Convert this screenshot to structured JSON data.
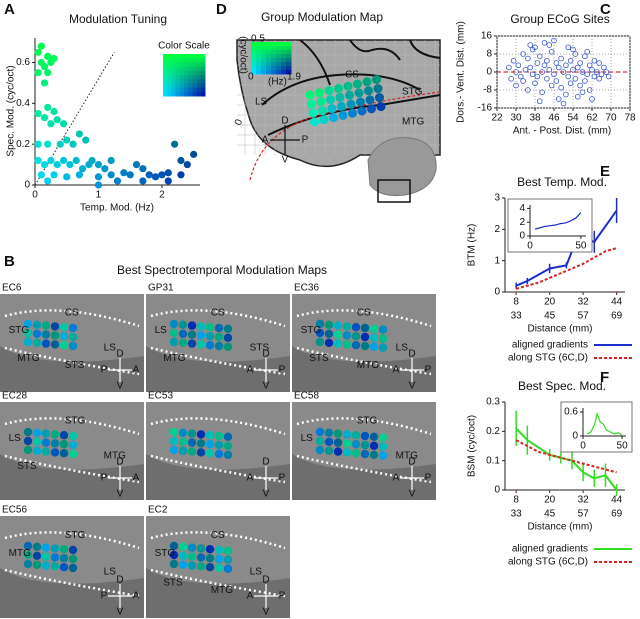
{
  "panels": {
    "letters": [
      "A",
      "B",
      "C",
      "D",
      "E",
      "F"
    ],
    "panel_b": {
      "title": "Best Spectrotemporal Modulation Maps",
      "maps": [
        {
          "id": "EC6",
          "labels": [
            "CS",
            "STG",
            "LS",
            "MTG",
            "STS"
          ],
          "compass": [
            "D",
            "V",
            "P",
            "A"
          ]
        },
        {
          "id": "GP31",
          "labels": [
            "CS",
            "LS",
            "STS",
            "MTG"
          ],
          "compass": [
            "D",
            "V",
            "A",
            "P"
          ]
        },
        {
          "id": "EC36",
          "labels": [
            "CS",
            "STG",
            "LS",
            "STS",
            "MTG"
          ],
          "compass": [
            "D",
            "V",
            "A",
            "P"
          ]
        },
        {
          "id": "EC28",
          "labels": [
            "STG",
            "LS",
            "MTG",
            "STS"
          ],
          "compass": [
            "D",
            "V",
            "P",
            "A"
          ]
        },
        {
          "id": "EC53",
          "labels": [],
          "compass": [
            "D",
            "V",
            "A",
            "P"
          ]
        },
        {
          "id": "EC58",
          "labels": [
            "STG",
            "LS",
            "MTG"
          ],
          "compass": [
            "D",
            "V",
            "A",
            "P"
          ]
        },
        {
          "id": "EC56",
          "labels": [
            "STG",
            "MTG",
            "LS"
          ],
          "compass": [
            "D",
            "V",
            "P",
            "A"
          ]
        },
        {
          "id": "EC2",
          "labels": [
            "CS",
            "STG",
            "LS",
            "STS",
            "MTG"
          ],
          "compass": [
            "D",
            "V",
            "A",
            "P"
          ]
        }
      ]
    },
    "panel_d": {
      "title": "Group Modulation Map",
      "colorbar": {
        "y_unit": "(cyc/oct)",
        "y_max": "0.5",
        "zero": "0",
        "x_unit": "(Hz)",
        "x_max": "1.9"
      },
      "labels": [
        "CS",
        "LS",
        "STG",
        "MTG"
      ],
      "origin_label": "0",
      "compass": [
        "D",
        "V",
        "A",
        "P"
      ]
    }
  },
  "chart_data": [
    {
      "type": "scatter",
      "title": "Modulation Tuning",
      "x_label": "Temp. Mod. (Hz)",
      "y_label": "Spec. Mod. (cyc/oct)",
      "color_scale_label": "Color Scale",
      "color_scale": [
        "#00e0ff",
        "#00ff40",
        "#0018a8"
      ],
      "xlim": [
        0,
        2.6
      ],
      "ylim": [
        0,
        0.72
      ],
      "xticks": [
        0,
        1,
        2
      ],
      "yticks": [
        0,
        0.2,
        0.4,
        0.6
      ],
      "diagonal": [
        [
          0,
          0
        ],
        [
          1.25,
          0.65
        ]
      ],
      "x": [
        0.05,
        0.1,
        0.15,
        0.2,
        0.1,
        0.25,
        0.3,
        0.2,
        0.15,
        0.05,
        0.05,
        0.15,
        0.25,
        0.35,
        0.45,
        0.3,
        0.2,
        0.05,
        0.2,
        0.4,
        0.6,
        0.8,
        0.7,
        0.5,
        0.05,
        0.15,
        0.25,
        0.35,
        0.45,
        0.55,
        0.65,
        0.75,
        0.85,
        0.9,
        1.0,
        1.1,
        1.2,
        0.1,
        0.3,
        0.5,
        0.7,
        1.0,
        1.2,
        1.4,
        1.5,
        1.6,
        1.7,
        1.8,
        1.9,
        2.0,
        2.1,
        2.2,
        2.3,
        2.4,
        2.5,
        2.3,
        1.3,
        1.7,
        2.1,
        1.0,
        0.2
      ],
      "values": [
        0.65,
        0.6,
        0.58,
        0.55,
        0.68,
        0.6,
        0.62,
        0.63,
        0.5,
        0.55,
        0.35,
        0.33,
        0.3,
        0.32,
        0.3,
        0.36,
        0.38,
        0.2,
        0.2,
        0.2,
        0.2,
        0.22,
        0.25,
        0.22,
        0.12,
        0.1,
        0.12,
        0.1,
        0.12,
        0.1,
        0.12,
        0.08,
        0.1,
        0.12,
        0.1,
        0.08,
        0.12,
        0.05,
        0.05,
        0.04,
        0.05,
        0.04,
        0.05,
        0.06,
        0.05,
        0.1,
        0.08,
        0.05,
        0.04,
        0.05,
        0.06,
        0.2,
        0.12,
        0.1,
        0.15,
        0.05,
        0.02,
        0.02,
        0.02,
        0.0,
        0.02
      ]
    },
    {
      "type": "scatter",
      "title": "Group ECoG Sites",
      "x_label": "Ant. - Post.  Dist. (mm)",
      "y_label": "Dors.- Vent. Dist. (mm)",
      "color": "#3355cc",
      "reference_line": {
        "value": 0,
        "color": "#cc0000"
      },
      "grid": true,
      "xlim": [
        22,
        78
      ],
      "ylim": [
        -16,
        16
      ],
      "xticks": [
        22,
        30,
        38,
        46,
        54,
        62,
        70,
        78
      ],
      "yticks": [
        16,
        8,
        0,
        -8,
        -16
      ],
      "x": [
        27,
        28,
        29,
        30,
        30,
        31,
        32,
        33,
        33,
        34,
        35,
        35,
        36,
        37,
        37,
        38,
        39,
        39,
        40,
        41,
        41,
        42,
        43,
        43,
        44,
        45,
        45,
        46,
        47,
        47,
        48,
        49,
        49,
        50,
        51,
        51,
        52,
        53,
        53,
        54,
        55,
        55,
        56,
        57,
        57,
        58,
        59,
        59,
        60,
        61,
        61,
        62,
        63,
        63,
        64,
        65,
        65,
        66,
        67,
        68,
        69,
        44,
        48,
        52,
        56,
        36,
        40,
        60,
        46,
        50,
        54,
        58,
        42,
        38,
        62
      ],
      "values": [
        2,
        -3,
        5,
        0,
        -6,
        3,
        -2,
        8,
        -4,
        1,
        6,
        -8,
        2,
        -1,
        10,
        -5,
        4,
        -2,
        7,
        0,
        -9,
        3,
        -3,
        5,
        1,
        -6,
        9,
        -1,
        4,
        -4,
        2,
        -7,
        6,
        0,
        3,
        -10,
        -2,
        5,
        -5,
        1,
        8,
        -3,
        2,
        -6,
        4,
        0,
        -4,
        7,
        -1,
        3,
        -8,
        1,
        -2,
        5,
        0,
        -3,
        4,
        -1,
        2,
        0,
        -2,
        12,
        -12,
        11,
        -11,
        12,
        -13,
        9,
        14,
        -14,
        10,
        -9,
        13,
        11,
        -12
      ]
    },
    {
      "type": "line",
      "title": "Best Temp. Mod.",
      "x_label": "Distance (mm)",
      "y_label": "BTM (Hz)",
      "xlim": [
        4,
        47
      ],
      "xticks": [
        8,
        20,
        32,
        44
      ],
      "x_color": "#1a2ecc",
      "x2lim": [
        29,
        72
      ],
      "x2ticks": [
        33,
        45,
        57,
        69
      ],
      "x2_color": "#dd2222",
      "ylim": [
        0,
        3
      ],
      "yticks": [
        0,
        1,
        2,
        3
      ],
      "legend": "bottom",
      "series": [
        {
          "name": "aligned gradients",
          "color": "#1a2ecc",
          "x": [
            8,
            12,
            20,
            26,
            30,
            36,
            44
          ],
          "values": [
            0.2,
            0.35,
            0.75,
            0.85,
            1.75,
            1.6,
            2.6
          ],
          "errors": [
            0.1,
            0.1,
            0.15,
            0.1,
            0.2,
            0.35,
            0.4
          ]
        },
        {
          "name": "along STG (6C,D)",
          "color": "#dd2222",
          "dashed": true,
          "axis": "x2",
          "x": [
            33,
            37,
            41,
            45,
            49,
            53,
            57,
            61,
            65,
            69
          ],
          "values": [
            0.1,
            0.2,
            0.3,
            0.45,
            0.6,
            0.75,
            0.9,
            1.1,
            1.3,
            1.4
          ]
        }
      ]
    },
    {
      "type": "line",
      "color": "#1a2ecc",
      "xlim": [
        0,
        55
      ],
      "xticks": [
        0,
        50
      ],
      "ylim": [
        0,
        4.5
      ],
      "yticks": [
        0,
        2,
        4
      ],
      "x": [
        5,
        10,
        15,
        20,
        25,
        30,
        35,
        40,
        45,
        50
      ],
      "values": [
        1.0,
        1.2,
        1.4,
        1.5,
        1.6,
        1.8,
        1.9,
        2.2,
        2.6,
        3.4
      ]
    },
    {
      "type": "line",
      "title": "Best Spec. Mod.",
      "x_label": "Distance (mm)",
      "y_label": "BSM (cyc/oct)",
      "xlim": [
        4,
        47
      ],
      "xticks": [
        8,
        20,
        32,
        44
      ],
      "x_color": "#22cc22",
      "x2lim": [
        29,
        72
      ],
      "x2ticks": [
        33,
        45,
        57,
        69
      ],
      "x2_color": "#dd2222",
      "ylim": [
        0,
        0.3
      ],
      "yticks": [
        0,
        0.1,
        0.2,
        0.3
      ],
      "legend": "bottom",
      "series": [
        {
          "name": "aligned gradients",
          "color": "#33dd22",
          "x": [
            8,
            12,
            20,
            24,
            28,
            32,
            36,
            40,
            44
          ],
          "values": [
            0.21,
            0.17,
            0.12,
            0.11,
            0.1,
            0.06,
            0.04,
            0.05,
            0.0
          ],
          "errors": [
            0.06,
            0.05,
            0.02,
            0.02,
            0.03,
            0.03,
            0.03,
            0.04,
            0.02
          ]
        },
        {
          "name": "along STG (6C,D)",
          "color": "#dd2222",
          "dashed": true,
          "axis": "x2",
          "x": [
            33,
            37,
            41,
            45,
            49,
            53,
            57,
            61,
            65,
            69
          ],
          "values": [
            0.17,
            0.15,
            0.13,
            0.12,
            0.11,
            0.1,
            0.09,
            0.08,
            0.07,
            0.06
          ]
        }
      ]
    },
    {
      "type": "line",
      "color": "#33dd22",
      "xlim": [
        0,
        55
      ],
      "xticks": [
        0,
        50
      ],
      "ylim": [
        0,
        0.7
      ],
      "yticks": [
        0,
        0.6
      ],
      "x": [
        5,
        10,
        15,
        18,
        22,
        26,
        30,
        35,
        40,
        45,
        50
      ],
      "values": [
        0.05,
        0.1,
        0.3,
        0.55,
        0.35,
        0.3,
        0.15,
        0.1,
        0.05,
        0.08,
        0.02
      ]
    }
  ]
}
